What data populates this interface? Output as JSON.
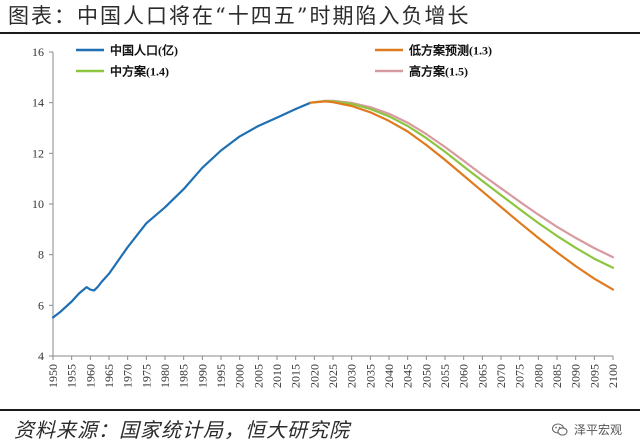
{
  "header": {
    "title": "图表：中国人口将在“十四五”时期陷入负增长"
  },
  "footer": {
    "source": "资料来源：国家统计局，恒大研究院"
  },
  "watermark": {
    "text": "泽平宏观",
    "icon": "wechat-icon"
  },
  "chart_data": {
    "type": "line",
    "title": "",
    "xlabel": "",
    "ylabel": "",
    "xlim": [
      1950,
      2100
    ],
    "ylim": [
      4,
      16
    ],
    "yticks": [
      4,
      6,
      8,
      10,
      12,
      14,
      16
    ],
    "xticks": [
      1950,
      1955,
      1960,
      1965,
      1970,
      1975,
      1980,
      1985,
      1990,
      1995,
      2000,
      2005,
      2010,
      2015,
      2020,
      2025,
      2030,
      2035,
      2040,
      2045,
      2050,
      2055,
      2060,
      2065,
      2070,
      2075,
      2080,
      2085,
      2090,
      2095,
      2100
    ],
    "grid": false,
    "legend_position": "top",
    "series": [
      {
        "name": "中国人口(亿)",
        "color": "#1f6fb4",
        "x": [
          1950,
          1952,
          1955,
          1957,
          1959,
          1960,
          1961,
          1962,
          1963,
          1965,
          1970,
          1975,
          1980,
          1985,
          1990,
          1995,
          2000,
          2005,
          2010,
          2015,
          2019
        ],
        "y": [
          5.52,
          5.75,
          6.15,
          6.47,
          6.72,
          6.62,
          6.59,
          6.73,
          6.92,
          7.25,
          8.3,
          9.24,
          9.87,
          10.59,
          11.43,
          12.11,
          12.67,
          13.08,
          13.41,
          13.75,
          14.0
        ]
      },
      {
        "name": "低方案预测(1.3)",
        "color": "#e07a1f",
        "x": [
          2019,
          2023,
          2025,
          2030,
          2035,
          2040,
          2045,
          2050,
          2055,
          2060,
          2065,
          2070,
          2075,
          2080,
          2085,
          2090,
          2095,
          2100
        ],
        "y": [
          14.0,
          14.05,
          14.02,
          13.87,
          13.62,
          13.28,
          12.86,
          12.33,
          11.74,
          11.12,
          10.5,
          9.88,
          9.26,
          8.66,
          8.09,
          7.55,
          7.05,
          6.62
        ]
      },
      {
        "name": "中方案(1.4)",
        "color": "#8cc63f",
        "x": [
          2019,
          2023,
          2025,
          2030,
          2035,
          2040,
          2045,
          2050,
          2055,
          2060,
          2065,
          2070,
          2075,
          2080,
          2085,
          2090,
          2095,
          2100
        ],
        "y": [
          14.0,
          14.06,
          14.05,
          13.95,
          13.75,
          13.46,
          13.08,
          12.6,
          12.06,
          11.48,
          10.91,
          10.35,
          9.79,
          9.25,
          8.74,
          8.27,
          7.84,
          7.48
        ]
      },
      {
        "name": "高方案(1.5)",
        "color": "#d79aa0",
        "x": [
          2019,
          2023,
          2025,
          2030,
          2035,
          2040,
          2045,
          2050,
          2055,
          2060,
          2065,
          2070,
          2075,
          2080,
          2085,
          2090,
          2095,
          2100
        ],
        "y": [
          14.0,
          14.07,
          14.07,
          13.99,
          13.82,
          13.56,
          13.21,
          12.76,
          12.25,
          11.7,
          11.15,
          10.62,
          10.09,
          9.58,
          9.1,
          8.66,
          8.26,
          7.9
        ]
      }
    ]
  }
}
